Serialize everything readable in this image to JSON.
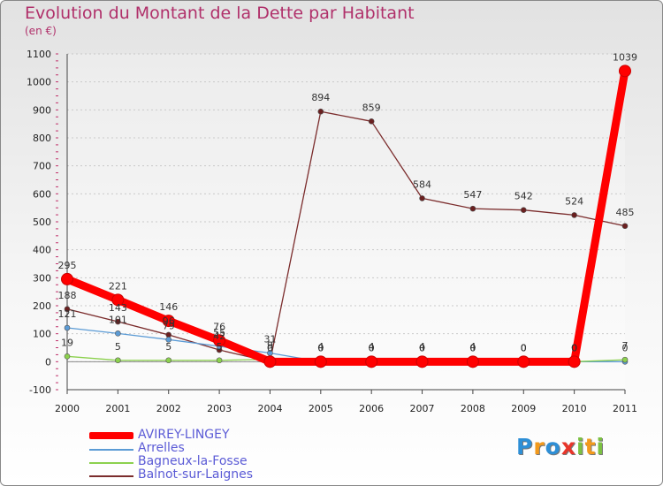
{
  "chart_data": {
    "type": "line",
    "title": "Evolution du Montant de la Dette par Habitant",
    "subtitle": "(en €)",
    "xlabel": "",
    "ylabel": "",
    "ylim": [
      -100,
      1100
    ],
    "yticks": [
      "-100",
      "0",
      "100",
      "200",
      "300",
      "400",
      "500",
      "600",
      "700",
      "800",
      "900",
      "1000",
      "1100"
    ],
    "x": [
      "2000",
      "2001",
      "2002",
      "2003",
      "2004",
      "2005",
      "2006",
      "2007",
      "2008",
      "2009",
      "2010",
      "2011"
    ],
    "series": [
      {
        "name": "AVIREY-LINGEY",
        "color": "#ff0000",
        "values": [
          295,
          221,
          146,
          76,
          0,
          0,
          0,
          0,
          0,
          0,
          0,
          1039
        ],
        "labels": [
          "295",
          "221",
          "146",
          "76",
          "0",
          "0",
          "0",
          "0",
          "0",
          "0",
          "0",
          "1039"
        ]
      },
      {
        "name": "Arrelles",
        "color": "#5b9bd5",
        "values": [
          121,
          101,
          79,
          55,
          31,
          0,
          0,
          0,
          0,
          0,
          0,
          0
        ],
        "labels": [
          "121",
          "101",
          "79",
          "55",
          "31",
          "0",
          "0",
          "0",
          "0",
          "0",
          "0",
          "0"
        ]
      },
      {
        "name": "Bagneux-la-Fosse",
        "color": "#8cd14e",
        "values": [
          19,
          5,
          5,
          5,
          9,
          4,
          4,
          4,
          4,
          0,
          0,
          7
        ],
        "labels": [
          "19",
          "5",
          "5",
          "5",
          "9",
          "4",
          "4",
          "4",
          "4",
          "0",
          "0",
          "7"
        ]
      },
      {
        "name": "Balnot-sur-Laignes",
        "color": "#7b2c2c",
        "values": [
          188,
          143,
          96,
          42,
          0,
          894,
          859,
          584,
          547,
          542,
          524,
          485
        ],
        "labels": [
          "188",
          "143",
          "96",
          "42",
          "0",
          "894",
          "859",
          "584",
          "547",
          "542",
          "524",
          "485"
        ]
      }
    ]
  },
  "logo": {
    "letters": [
      "P",
      "r",
      "o",
      "x",
      "i",
      "t",
      "i"
    ],
    "colors": [
      "#2e8fd6",
      "#f39a1c",
      "#2e8fd6",
      "#e8352a",
      "#7cc142",
      "#f39a1c",
      "#7cc142"
    ]
  }
}
